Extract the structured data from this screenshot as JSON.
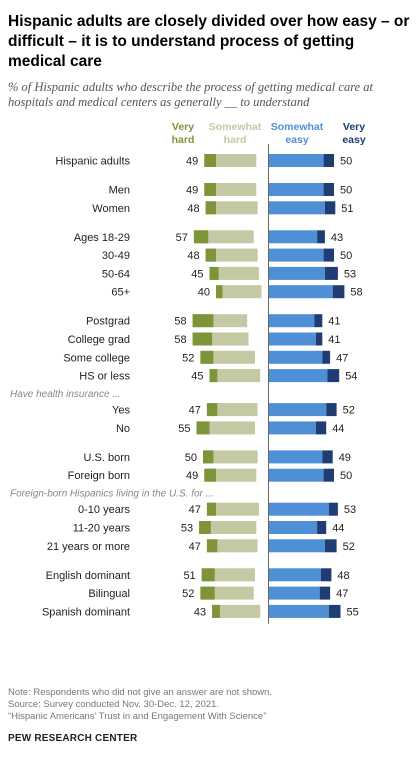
{
  "title": "Hispanic adults are closely divided over how easy – or difficult – it is to understand process of getting medical care",
  "subtitle": "% of Hispanic adults who describe the process of getting medical care at hospitals and medical centers as generally __ to understand",
  "footer": {
    "note": "Note: Respondents who did not give an answer are not shown.",
    "source": "Source: Survey conducted Nov. 30-Dec. 12, 2021.",
    "report": "“Hispanic Americans’ Trust in and Engagement With Science”",
    "brand": "PEW RESEARCH CENTER"
  },
  "chart_data": {
    "type": "bar",
    "orientation": "horizontal-diverging",
    "legend": [
      {
        "key": "very_hard",
        "label": "Very\nhard",
        "color": "#7d9438"
      },
      {
        "key": "somewhat_hard",
        "label": "Somewhat\nhard",
        "color": "#c4c8a3"
      },
      {
        "key": "somewhat_easy",
        "label": "Somewhat\neasy",
        "color": "#4f8fd6"
      },
      {
        "key": "very_easy",
        "label": "Very\neasy",
        "color": "#1f3d73"
      }
    ],
    "rows": [
      {
        "label": "Hispanic adults",
        "net_hard": 49,
        "net_easy": 50,
        "very_hard": 9,
        "very_easy": 8
      },
      {
        "gap": true
      },
      {
        "label": "Men",
        "net_hard": 49,
        "net_easy": 50,
        "very_hard": 9,
        "very_easy": 8
      },
      {
        "label": "Women",
        "net_hard": 48,
        "net_easy": 51,
        "very_hard": 8,
        "very_easy": 8
      },
      {
        "gap": true
      },
      {
        "label": "Ages 18-29",
        "net_hard": 57,
        "net_easy": 43,
        "very_hard": 11,
        "very_easy": 6
      },
      {
        "label": "30-49",
        "net_hard": 48,
        "net_easy": 50,
        "very_hard": 8,
        "very_easy": 8
      },
      {
        "label": "50-64",
        "net_hard": 45,
        "net_easy": 53,
        "very_hard": 7,
        "very_easy": 10
      },
      {
        "label": "65+",
        "net_hard": 40,
        "net_easy": 58,
        "very_hard": 5,
        "very_easy": 9
      },
      {
        "gap": true
      },
      {
        "label": "Postgrad",
        "net_hard": 58,
        "net_easy": 41,
        "very_hard": 16,
        "very_easy": 6
      },
      {
        "label": "College grad",
        "net_hard": 58,
        "net_easy": 41,
        "very_hard": 15,
        "very_easy": 5
      },
      {
        "label": "Some college",
        "net_hard": 52,
        "net_easy": 47,
        "very_hard": 10,
        "very_easy": 6
      },
      {
        "label": "HS or less",
        "net_hard": 45,
        "net_easy": 54,
        "very_hard": 6,
        "very_easy": 9
      },
      {
        "header": "Have health insurance ..."
      },
      {
        "label": "Yes",
        "net_hard": 47,
        "net_easy": 52,
        "very_hard": 8,
        "very_easy": 8
      },
      {
        "label": "No",
        "net_hard": 55,
        "net_easy": 44,
        "very_hard": 10,
        "very_easy": 8
      },
      {
        "gap": true
      },
      {
        "label": "U.S. born",
        "net_hard": 50,
        "net_easy": 49,
        "very_hard": 8,
        "very_easy": 8
      },
      {
        "label": "Foreign born",
        "net_hard": 49,
        "net_easy": 50,
        "very_hard": 9,
        "very_easy": 8
      },
      {
        "header": "Foreign-born Hispanics living in the U.S. for ..."
      },
      {
        "label": "0-10 years",
        "net_hard": 47,
        "net_easy": 53,
        "very_hard": 7,
        "very_easy": 7
      },
      {
        "label": "11-20 years",
        "net_hard": 53,
        "net_easy": 44,
        "very_hard": 9,
        "very_easy": 7
      },
      {
        "label": "21 years or more",
        "net_hard": 47,
        "net_easy": 52,
        "very_hard": 8,
        "very_easy": 9
      },
      {
        "gap": true
      },
      {
        "label": "English dominant",
        "net_hard": 51,
        "net_easy": 48,
        "very_hard": 10,
        "very_easy": 8
      },
      {
        "label": "Bilingual",
        "net_hard": 52,
        "net_easy": 47,
        "very_hard": 11,
        "very_easy": 8
      },
      {
        "label": "Spanish dominant",
        "net_hard": 43,
        "net_easy": 55,
        "very_hard": 6,
        "very_easy": 9
      }
    ],
    "xlim": [
      -60,
      60
    ],
    "grid": false,
    "legend_placement": "top"
  }
}
